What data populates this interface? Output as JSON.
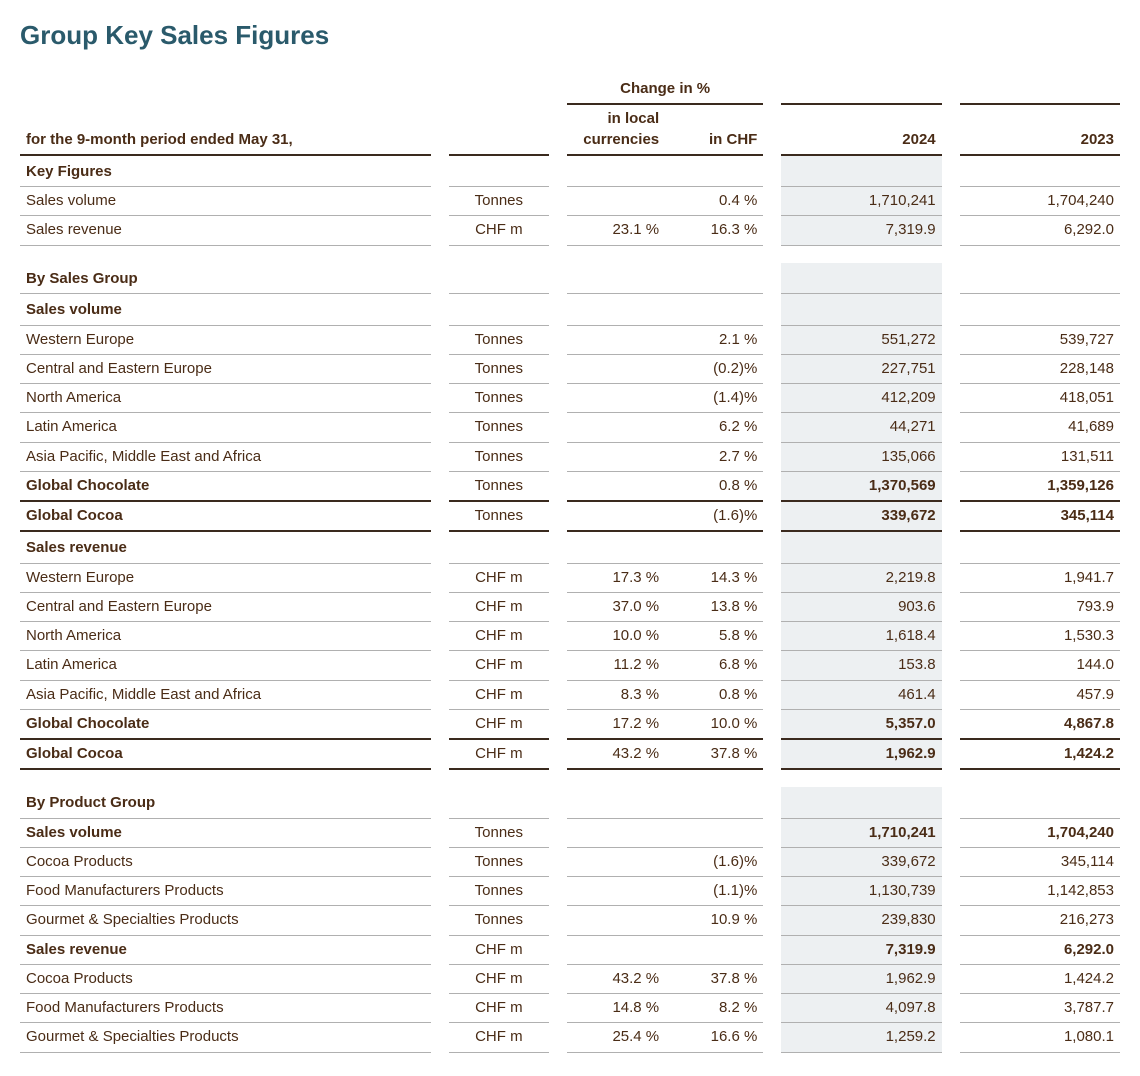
{
  "title": "Group Key Sales Figures",
  "period_label": "for the 9-month period ended May 31,",
  "change_header": "Change in %",
  "col_local": "in local currencies",
  "col_chf": "in CHF",
  "col_2024": "2024",
  "col_2023": "2023",
  "s_key": "Key Figures",
  "r_sv": {
    "label": "Sales volume",
    "unit": "Tonnes",
    "local": "",
    "chf": "0.4 %",
    "y24": "1,710,241",
    "y23": "1,704,240"
  },
  "r_sr": {
    "label": "Sales revenue",
    "unit": "CHF m",
    "local": "23.1 %",
    "chf": "16.3 %",
    "y24": "7,319.9",
    "y23": "6,292.0"
  },
  "s_bysales": "By Sales Group",
  "s_sv": "Sales volume",
  "sv_we": {
    "label": "Western Europe",
    "unit": "Tonnes",
    "local": "",
    "chf": "2.1 %",
    "y24": "551,272",
    "y23": "539,727"
  },
  "sv_cee": {
    "label": "Central and Eastern Europe",
    "unit": "Tonnes",
    "local": "",
    "chf": "(0.2)%",
    "y24": "227,751",
    "y23": "228,148"
  },
  "sv_na": {
    "label": "North America",
    "unit": "Tonnes",
    "local": "",
    "chf": "(1.4)%",
    "y24": "412,209",
    "y23": "418,051"
  },
  "sv_la": {
    "label": "Latin America",
    "unit": "Tonnes",
    "local": "",
    "chf": "6.2 %",
    "y24": "44,271",
    "y23": "41,689"
  },
  "sv_ap": {
    "label": "Asia Pacific, Middle East and Africa",
    "unit": "Tonnes",
    "local": "",
    "chf": "2.7 %",
    "y24": "135,066",
    "y23": "131,511"
  },
  "sv_gch": {
    "label": "Global Chocolate",
    "unit": "Tonnes",
    "local": "",
    "chf": "0.8 %",
    "y24": "1,370,569",
    "y23": "1,359,126"
  },
  "sv_gco": {
    "label": "Global Cocoa",
    "unit": "Tonnes",
    "local": "",
    "chf": "(1.6)%",
    "y24": "339,672",
    "y23": "345,114"
  },
  "s_sr": "Sales revenue",
  "sr_we": {
    "label": "Western Europe",
    "unit": "CHF m",
    "local": "17.3 %",
    "chf": "14.3 %",
    "y24": "2,219.8",
    "y23": "1,941.7"
  },
  "sr_cee": {
    "label": "Central and Eastern Europe",
    "unit": "CHF m",
    "local": "37.0 %",
    "chf": "13.8 %",
    "y24": "903.6",
    "y23": "793.9"
  },
  "sr_na": {
    "label": "North America",
    "unit": "CHF m",
    "local": "10.0 %",
    "chf": "5.8 %",
    "y24": "1,618.4",
    "y23": "1,530.3"
  },
  "sr_la": {
    "label": "Latin America",
    "unit": "CHF m",
    "local": "11.2 %",
    "chf": "6.8 %",
    "y24": "153.8",
    "y23": "144.0"
  },
  "sr_ap": {
    "label": "Asia Pacific, Middle East and Africa",
    "unit": "CHF m",
    "local": "8.3 %",
    "chf": "0.8 %",
    "y24": "461.4",
    "y23": "457.9"
  },
  "sr_gch": {
    "label": "Global Chocolate",
    "unit": "CHF m",
    "local": "17.2 %",
    "chf": "10.0 %",
    "y24": "5,357.0",
    "y23": "4,867.8"
  },
  "sr_gco": {
    "label": "Global Cocoa",
    "unit": "CHF m",
    "local": "43.2 %",
    "chf": "37.8 %",
    "y24": "1,962.9",
    "y23": "1,424.2"
  },
  "s_byprod": "By Product Group",
  "pv_tot": {
    "label": "Sales volume",
    "unit": "Tonnes",
    "local": "",
    "chf": "",
    "y24": "1,710,241",
    "y23": "1,704,240"
  },
  "pv_cp": {
    "label": "Cocoa Products",
    "unit": "Tonnes",
    "local": "",
    "chf": "(1.6)%",
    "y24": "339,672",
    "y23": "345,114"
  },
  "pv_fm": {
    "label": "Food Manufacturers Products",
    "unit": "Tonnes",
    "local": "",
    "chf": "(1.1)%",
    "y24": "1,130,739",
    "y23": "1,142,853"
  },
  "pv_gs": {
    "label": "Gourmet & Specialties Products",
    "unit": "Tonnes",
    "local": "",
    "chf": "10.9 %",
    "y24": "239,830",
    "y23": "216,273"
  },
  "pr_tot": {
    "label": "Sales revenue",
    "unit": "CHF m",
    "local": "",
    "chf": "",
    "y24": "7,319.9",
    "y23": "6,292.0"
  },
  "pr_cp": {
    "label": "Cocoa Products",
    "unit": "CHF m",
    "local": "43.2 %",
    "chf": "37.8 %",
    "y24": "1,962.9",
    "y23": "1,424.2"
  },
  "pr_fm": {
    "label": "Food Manufacturers Products",
    "unit": "CHF m",
    "local": "14.8 %",
    "chf": "8.2 %",
    "y24": "4,097.8",
    "y23": "3,787.7"
  },
  "pr_gs": {
    "label": "Gourmet & Specialties Products",
    "unit": "CHF m",
    "local": "25.4 %",
    "chf": "16.6 %",
    "y24": "1,259.2",
    "y23": "1,080.1"
  },
  "style": {
    "title_color": "#2a5a6b",
    "text_color": "#4a2c16",
    "hairline_color": "#b0b0b0",
    "thick_border_color": "#3a2a1e",
    "highlight_bg": "#edf0f2",
    "font_family": "Segoe UI, Arial, sans-serif",
    "title_fontsize_pt": 20,
    "body_fontsize_pt": 11
  }
}
